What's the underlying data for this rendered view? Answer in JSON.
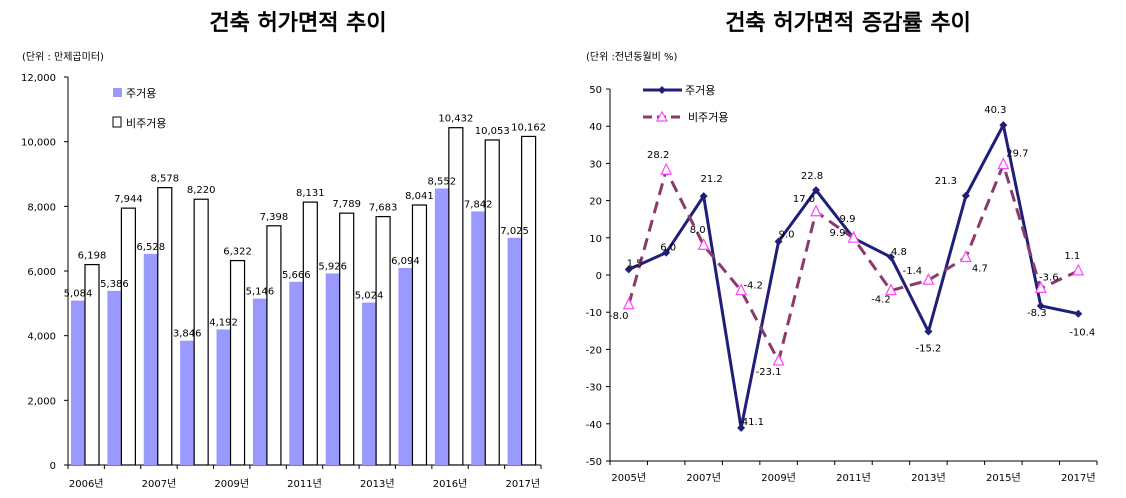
{
  "chart_data": [
    {
      "type": "bar",
      "title": "건축 허가면적 추이",
      "unit_label": "(단위 : 만제곱미터)",
      "categories": [
        "2006년",
        "",
        "2007년",
        "",
        "2009년",
        "",
        "2011년",
        "",
        "2013년",
        "",
        "2016년",
        "",
        "2017년"
      ],
      "series": [
        {
          "name": "주거용",
          "color": "#9999ff",
          "values": [
            5084,
            5386,
            6528,
            3846,
            4192,
            5146,
            5666,
            5926,
            5024,
            6094,
            8552,
            7842,
            7025
          ]
        },
        {
          "name": "비주거용",
          "color": "#ffffff",
          "values": [
            6198,
            7944,
            8578,
            8220,
            6322,
            7398,
            8131,
            7789,
            7683,
            8041,
            10432,
            10053,
            10162
          ]
        }
      ],
      "value_labels": {
        "주거용": [
          "5,084",
          "5,386",
          "6,528",
          "3,846",
          "4,192",
          "5,146",
          "5,666",
          "5,926",
          "5,024",
          "6,094",
          "8,552",
          "7,842",
          "7,025"
        ],
        "비주거용": [
          "6,198",
          "7,944",
          "8,578",
          "8,220",
          "6,322",
          "7,398",
          "8,131",
          "7,789",
          "7,683",
          "8,041",
          "10,432",
          "10,053",
          "10,162"
        ]
      },
      "ylim": [
        0,
        12000
      ],
      "yticks": [
        0,
        2000,
        4000,
        6000,
        8000,
        10000,
        12000
      ],
      "ytick_labels": [
        "0",
        "2,000",
        "4,000",
        "6,000",
        "8,000",
        "10,000",
        "12,000"
      ],
      "grid": false,
      "legend_position": "top-left"
    },
    {
      "type": "line",
      "title": "건축 허가면적 증감률 추이",
      "unit_label": "(단위 :전년동월비 %)",
      "categories": [
        "2005년",
        "",
        "2007년",
        "",
        "2009년",
        "",
        "2011년",
        "",
        "2013년",
        "",
        "2015년",
        "",
        "2017년"
      ],
      "series": [
        {
          "name": "주거용",
          "color": "#1f1f7a",
          "marker": "diamond",
          "values": [
            1.5,
            6.0,
            21.2,
            -41.1,
            9.0,
            22.8,
            9.9,
            4.8,
            -15.2,
            21.3,
            40.3,
            -8.3,
            -10.4
          ],
          "labels": [
            "1.5",
            "6.0",
            "21.2",
            "-41.1",
            "9.0",
            "22.8",
            "9.9",
            "4.8",
            "-15.2",
            "21.3",
            "40.3",
            "-8.3",
            "-10.4"
          ]
        },
        {
          "name": "비주거용",
          "color": "#8b3a6b",
          "marker": "triangle",
          "dashed": true,
          "values": [
            -8.0,
            28.2,
            8.0,
            -4.2,
            -23.1,
            17.0,
            9.9,
            -4.2,
            -1.4,
            4.7,
            29.7,
            -3.6,
            1.1
          ],
          "labels": [
            "-8.0",
            "28.2",
            "8.0",
            "-4.2",
            "-23.1",
            "17.0",
            "9.9",
            "-4.2",
            "-1.4",
            "4.7",
            "29.7",
            "-3.6",
            "1.1"
          ]
        }
      ],
      "ylim": [
        -50,
        50
      ],
      "yticks": [
        -50,
        -40,
        -30,
        -20,
        -10,
        0,
        10,
        20,
        30,
        40,
        50
      ],
      "grid": false,
      "legend_position": "top-left"
    }
  ]
}
